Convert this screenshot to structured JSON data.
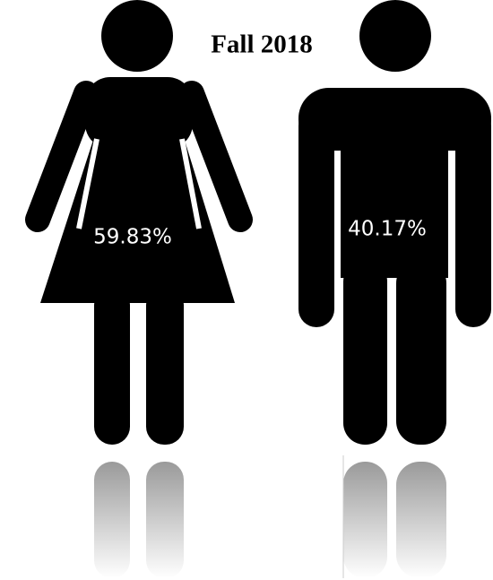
{
  "chart_data": {
    "type": "pictograph",
    "title": "Fall 2018",
    "categories": [
      null,
      null
    ],
    "values": [
      59.83,
      40.17
    ],
    "value_labels": [
      "59.83%",
      "40.17%"
    ],
    "color": "#000000"
  }
}
